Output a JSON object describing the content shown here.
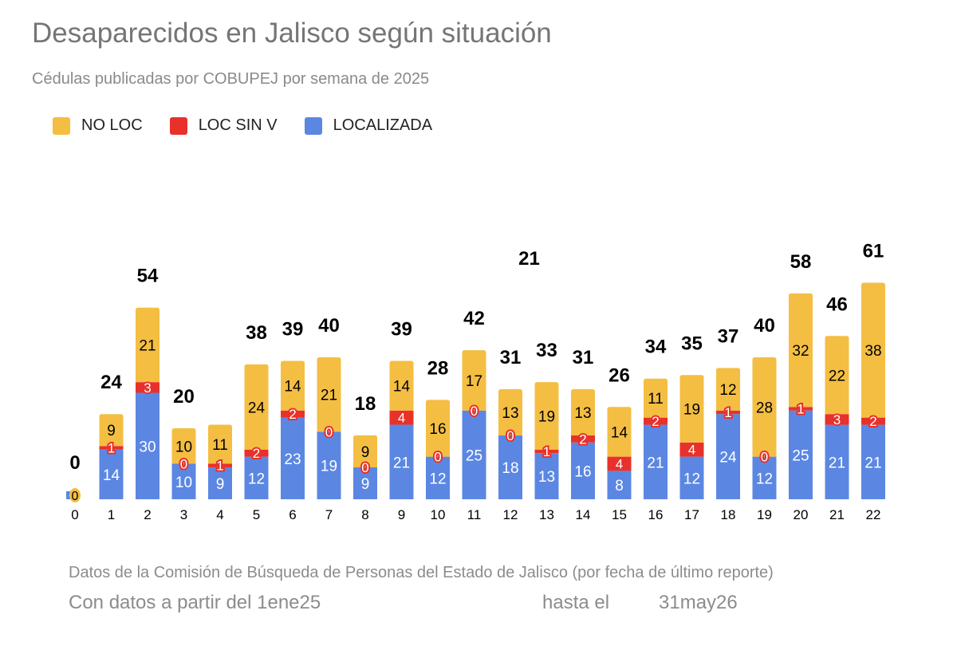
{
  "chart_data": {
    "type": "bar",
    "stacked": true,
    "title": "Desaparecidos en Jalisco según situación",
    "subtitle": "Cédulas publicadas por COBUPEJ por semana de 2025",
    "legend_position": "top-left",
    "grid": false,
    "categories": [
      "0",
      "1",
      "2",
      "3",
      "4",
      "5",
      "6",
      "7",
      "8",
      "9",
      "10",
      "11",
      "12",
      "13",
      "14",
      "15",
      "16",
      "17",
      "18",
      "19",
      "20",
      "21",
      "22"
    ],
    "series": [
      {
        "name": "LOCALIZADA",
        "color": "#5b87e3",
        "values": [
          0,
          14,
          30,
          10,
          9,
          12,
          23,
          19,
          9,
          21,
          12,
          25,
          18,
          13,
          16,
          8,
          21,
          12,
          24,
          12,
          25,
          21,
          21
        ]
      },
      {
        "name": "LOC SIN V",
        "color": "#e8312a",
        "values": [
          0,
          1,
          3,
          0,
          1,
          2,
          2,
          0,
          0,
          4,
          0,
          0,
          0,
          1,
          2,
          4,
          2,
          4,
          1,
          0,
          1,
          3,
          2
        ]
      },
      {
        "name": "NO LOC",
        "color": "#f4be43",
        "values": [
          0,
          9,
          21,
          10,
          11,
          24,
          14,
          21,
          9,
          14,
          16,
          17,
          13,
          19,
          13,
          14,
          11,
          19,
          12,
          28,
          32,
          22,
          38
        ]
      }
    ],
    "legend_order": [
      "NO LOC",
      "LOC SIN V",
      "LOCALIZADA"
    ],
    "totals": [
      "0",
      "24",
      "54",
      "20",
      "",
      "38",
      "39",
      "40",
      "18",
      "39",
      "28",
      "42",
      "31",
      "33",
      "31",
      "26",
      "34",
      "35",
      "37",
      "40",
      "58",
      "46",
      "61"
    ],
    "annotations": [
      {
        "text": "21"
      }
    ],
    "ylim": [
      0,
      68
    ]
  },
  "footer": {
    "source": "Datos de la Comisión de Búsqueda de Personas del Estado de Jalisco (por fecha de último reporte)",
    "from_label": "Con datos a partir del 1ene25",
    "until_label": "hasta el",
    "until_date": "31may26"
  }
}
